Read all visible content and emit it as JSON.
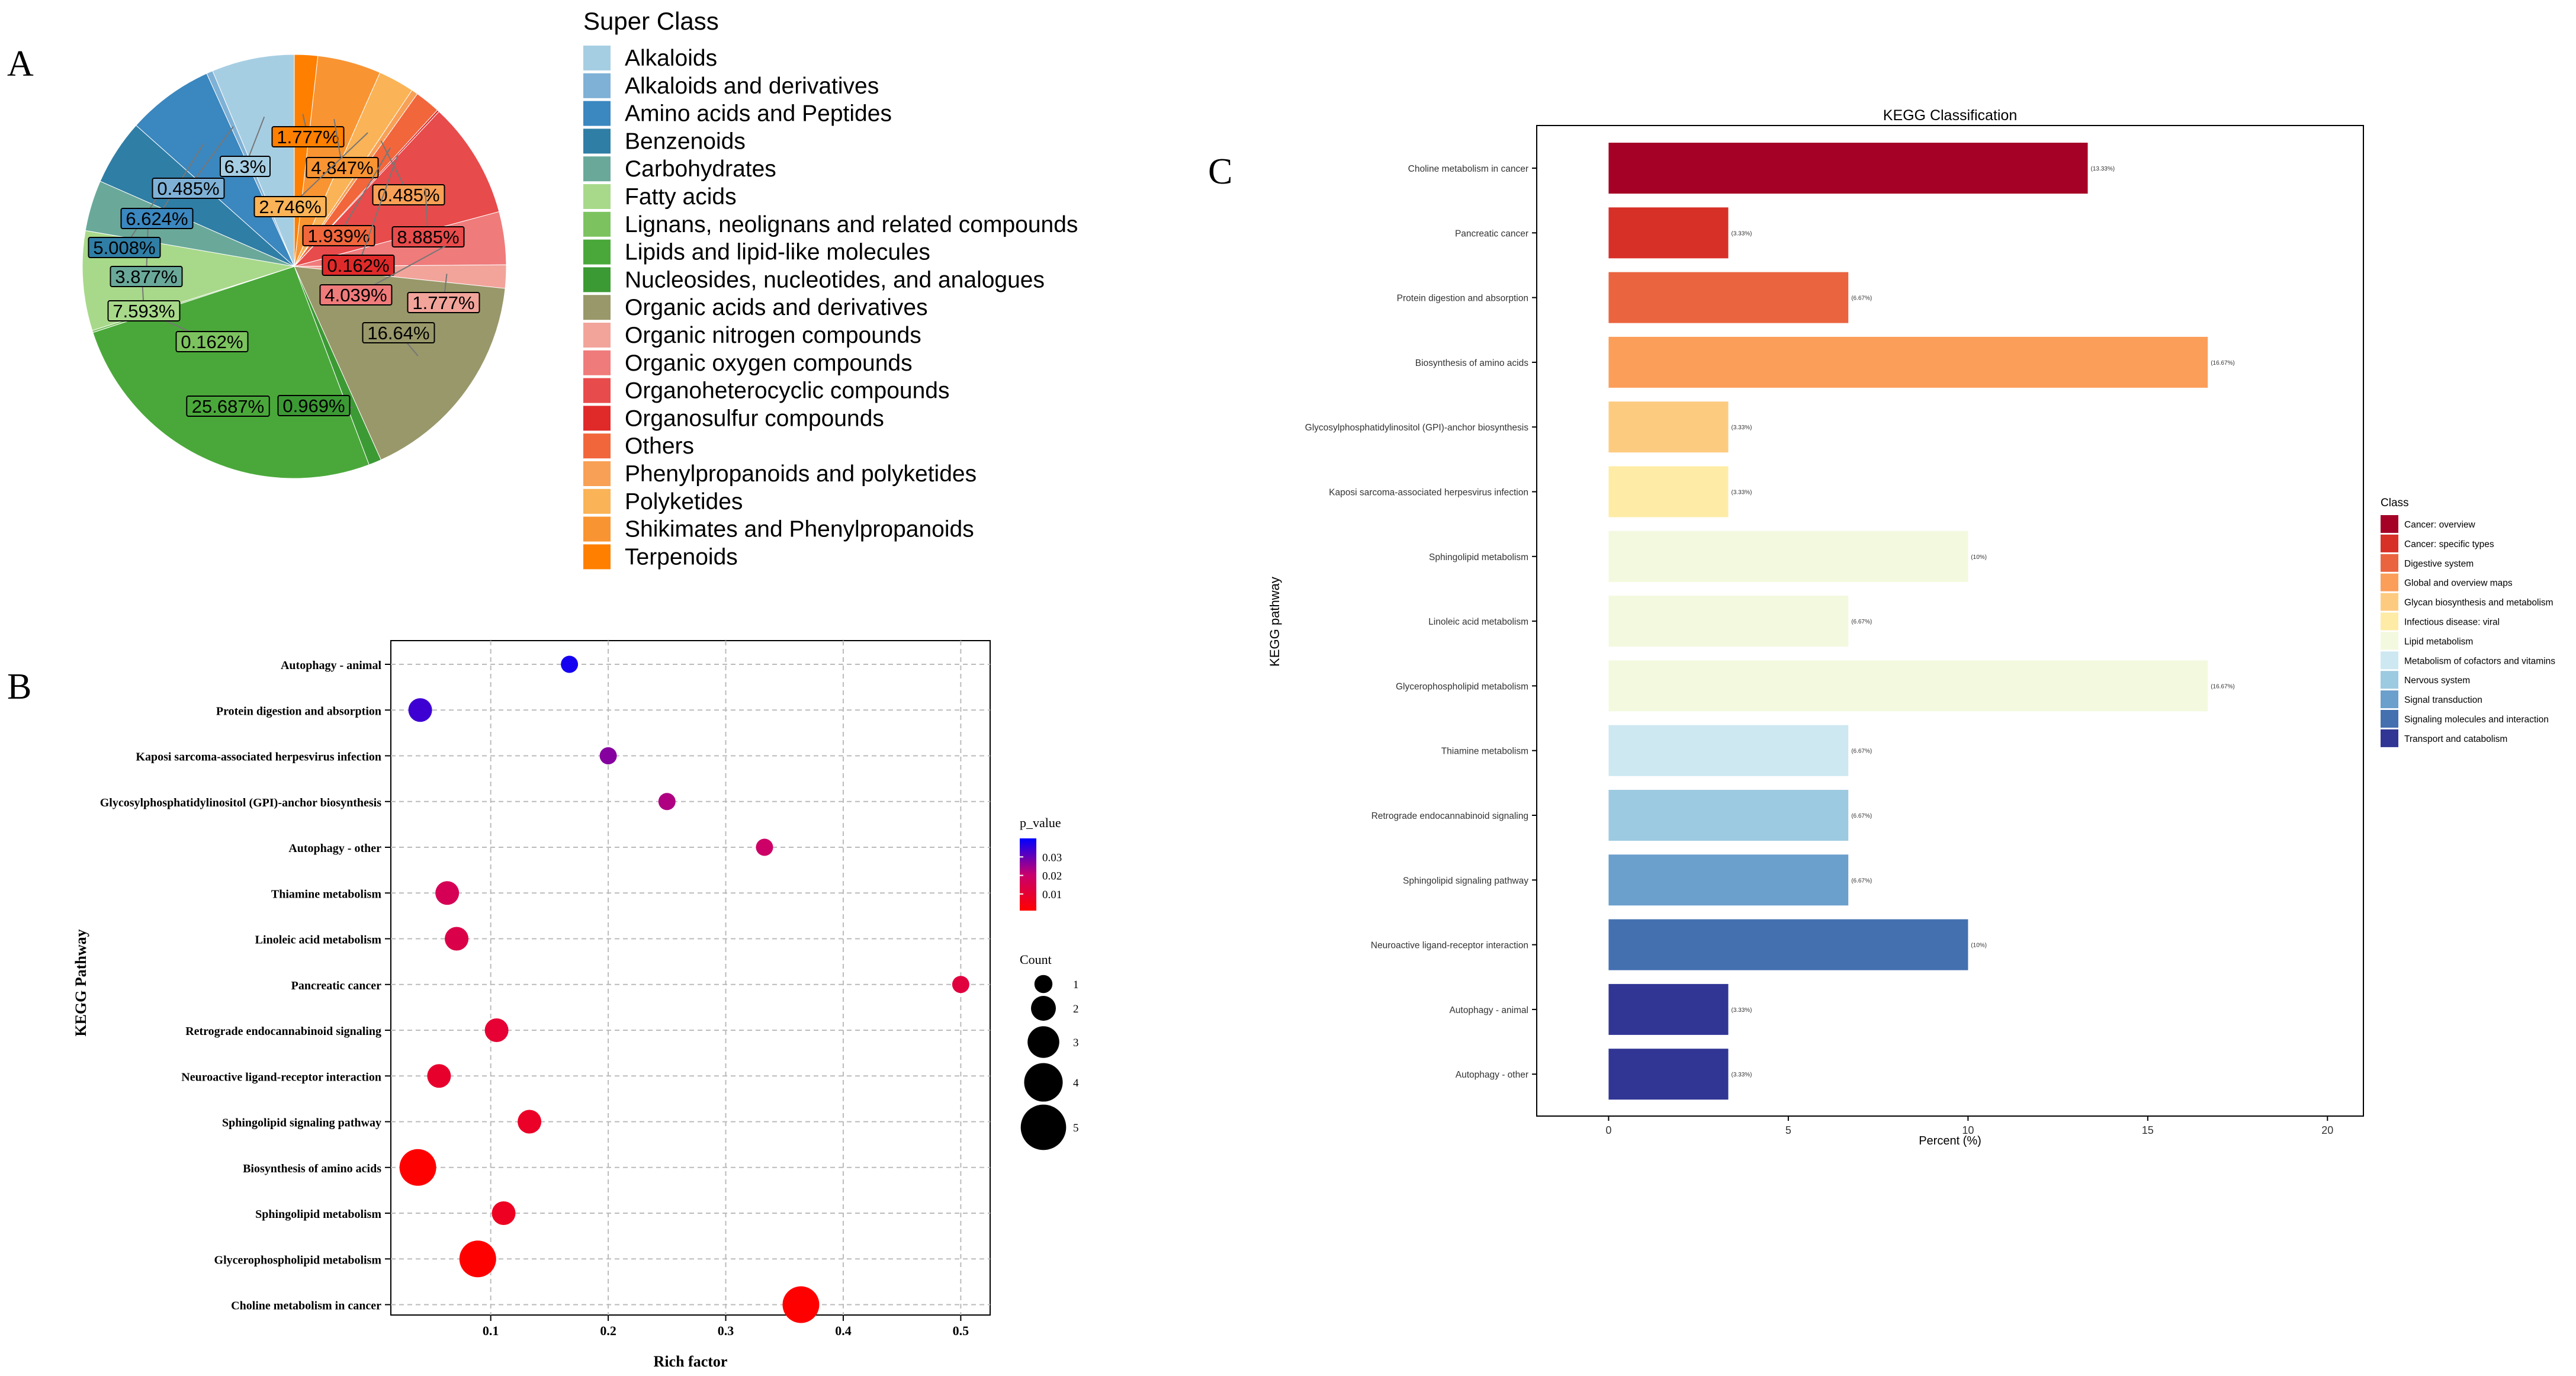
{
  "panels": {
    "a": "A",
    "b": "B",
    "c": "C"
  },
  "chart_data": [
    {
      "type": "pie",
      "legend_title": "Super Class",
      "legend_position": "right",
      "categories": [
        "Alkaloids",
        "Alkaloids and derivatives",
        "Amino acids and Peptides",
        "Benzenoids",
        "Carbohydrates",
        "Fatty acids",
        "Lignans, neolignans and related compounds",
        "Lipids and lipid-like molecules",
        "Nucleosides, nucleotides, and analogues",
        "Organic acids and derivatives",
        "Organic nitrogen compounds",
        "Organic oxygen compounds",
        "Organoheterocyclic compounds",
        "Organosulfur compounds",
        "Others",
        "Phenylpropanoids and polyketides",
        "Polyketides",
        "Shikimates and Phenylpropanoids",
        "Terpenoids"
      ],
      "colors": [
        "#a6cee3",
        "#7fb1d6",
        "#3b87bf",
        "#2f7ea6",
        "#6aa99a",
        "#a8d98a",
        "#7cc35f",
        "#4aa83a",
        "#3c9a34",
        "#99986a",
        "#f2a49a",
        "#f07b7b",
        "#e84b4b",
        "#e02a2a",
        "#f2663c",
        "#f8a055",
        "#fab356",
        "#f99432",
        "#ff7f00"
      ],
      "slices_order": [
        "Terpenoids",
        "Shikimates and Phenylpropanoids",
        "Polyketides",
        "Phenylpropanoids and polyketides",
        "Others",
        "Organosulfur compounds",
        "Organoheterocyclic compounds",
        "Organic oxygen compounds",
        "Organic nitrogen compounds",
        "Organic acids and derivatives",
        "Nucleosides, nucleotides, and analogues",
        "Lipids and lipid-like molecules",
        "Lignans, neolignans and related compounds",
        "Fatty acids",
        "Carbohydrates",
        "Benzenoids",
        "Amino acids and Peptides",
        "Alkaloids and derivatives",
        "Alkaloids"
      ],
      "slices_values": [
        1.777,
        4.847,
        2.746,
        0.485,
        1.939,
        0.162,
        8.885,
        4.039,
        1.777,
        16.64,
        0.969,
        25.687,
        0.162,
        7.593,
        3.877,
        5.008,
        6.624,
        0.485,
        6.3
      ],
      "labels": [
        "1.777%",
        "4.847%",
        "2.746%",
        "0.485%",
        "1.939%",
        "0.162%",
        "8.885%",
        "4.039%",
        "1.777%",
        "16.64%",
        "0.969%",
        "25.687%",
        "0.162%",
        "7.593%",
        "3.877%",
        "5.008%",
        "6.624%",
        "0.485%",
        "6.3%"
      ]
    },
    {
      "type": "scatter",
      "xlabel": "Rich factor",
      "ylabel": "KEGG Pathway",
      "xlim": [
        0.015,
        0.525
      ],
      "xticks": [
        0.1,
        0.2,
        0.3,
        0.4,
        0.5
      ],
      "xtick_labels": [
        "0.1",
        "0.2",
        "0.3",
        "0.4",
        "0.5"
      ],
      "grid": true,
      "categories": [
        "Autophagy - animal",
        "Protein digestion and absorption",
        "Kaposi sarcoma-associated herpesvirus infection",
        "Glycosylphosphatidylinositol (GPI)-anchor biosynthesis",
        "Autophagy - other",
        "Thiamine metabolism",
        "Linoleic acid metabolism",
        "Pancreatic cancer",
        "Retrograde endocannabinoid signaling",
        "Neuroactive ligand-receptor interaction",
        "Sphingolipid signaling pathway",
        "Biosynthesis of amino acids",
        "Sphingolipid metabolism",
        "Glycerophospholipid metabolism",
        "Choline metabolism in cancer"
      ],
      "rich_factor": [
        0.167,
        0.04,
        0.2,
        0.25,
        0.333,
        0.063,
        0.071,
        0.5,
        0.105,
        0.056,
        0.133,
        0.038,
        0.111,
        0.089,
        0.364
      ],
      "count": [
        1,
        2,
        1,
        1,
        1,
        2,
        2,
        1,
        2,
        2,
        2,
        4,
        2,
        4,
        4
      ],
      "p_value": [
        0.038,
        0.034,
        0.027,
        0.023,
        0.019,
        0.016,
        0.014,
        0.012,
        0.01,
        0.009,
        0.008,
        0.001,
        0.007,
        0.001,
        0.001
      ],
      "legend_color": {
        "title": "p_value",
        "ticks": [
          "0.03",
          "0.02",
          "0.01"
        ],
        "tick_values": [
          0.03,
          0.02,
          0.01
        ],
        "range": [
          0.001,
          0.04
        ],
        "low_color": "#ff0000",
        "high_color": "#0000ff"
      },
      "legend_size": {
        "title": "Count",
        "values": [
          1,
          2,
          3,
          4,
          5
        ],
        "labels": [
          "1",
          "2",
          "3",
          "4",
          "5"
        ]
      }
    },
    {
      "type": "bar",
      "orientation": "horizontal",
      "title": "KEGG Classification",
      "xlabel": "Percent (%)",
      "ylabel": "KEGG pathway",
      "xlim": [
        -2,
        21
      ],
      "xticks": [
        0,
        5,
        10,
        15,
        20
      ],
      "xtick_labels": [
        "0",
        "5",
        "10",
        "15",
        "20"
      ],
      "categories": [
        "Choline metabolism in cancer",
        "Pancreatic cancer",
        "Protein digestion and absorption",
        "Biosynthesis of amino acids",
        "Glycosylphosphatidylinositol (GPI)-anchor biosynthesis",
        "Kaposi sarcoma-associated herpesvirus infection",
        "Sphingolipid metabolism",
        "Linoleic acid metabolism",
        "Glycerophospholipid metabolism",
        "Thiamine metabolism",
        "Retrograde endocannabinoid signaling",
        "Sphingolipid signaling pathway",
        "Neuroactive ligand-receptor interaction",
        "Autophagy - animal",
        "Autophagy - other"
      ],
      "values": [
        13.33,
        3.33,
        6.67,
        16.67,
        3.33,
        3.33,
        10,
        6.67,
        16.67,
        6.67,
        6.67,
        6.67,
        10,
        3.33,
        3.33
      ],
      "value_labels": [
        "(13.33%)",
        "(3.33%)",
        "(6.67%)",
        "(16.67%)",
        "(3.33%)",
        "(3.33%)",
        "(10%)",
        "(6.67%)",
        "(16.67%)",
        "(6.67%)",
        "(6.67%)",
        "(6.67%)",
        "(10%)",
        "(3.33%)",
        "(3.33%)"
      ],
      "bar_class": [
        "Cancer: overview",
        "Cancer: specific types",
        "Digestive system",
        "Global and overview maps",
        "Glycan biosynthesis and metabolism",
        "Infectious disease: viral",
        "Lipid metabolism",
        "Lipid metabolism",
        "Lipid metabolism",
        "Metabolism of cofactors and vitamins",
        "Nervous system",
        "Signal transduction",
        "Signaling molecules and interaction",
        "Transport and catabolism",
        "Transport and catabolism"
      ],
      "legend_title": "Class",
      "legend_position": "right",
      "legend_items": [
        "Cancer: overview",
        "Cancer: specific types",
        "Digestive system",
        "Global and overview maps",
        "Glycan biosynthesis and metabolism",
        "Infectious disease: viral",
        "Lipid metabolism",
        "Metabolism of cofactors and vitamins",
        "Nervous system",
        "Signal transduction",
        "Signaling molecules and interaction",
        "Transport and catabolism"
      ],
      "legend_colors": [
        "#a50026",
        "#d73027",
        "#ea6440",
        "#fb9e5a",
        "#fdcb80",
        "#feeca6",
        "#f3f9de",
        "#cde8f1",
        "#9ccae1",
        "#6b9fcc",
        "#4470b0",
        "#313695"
      ]
    }
  ]
}
